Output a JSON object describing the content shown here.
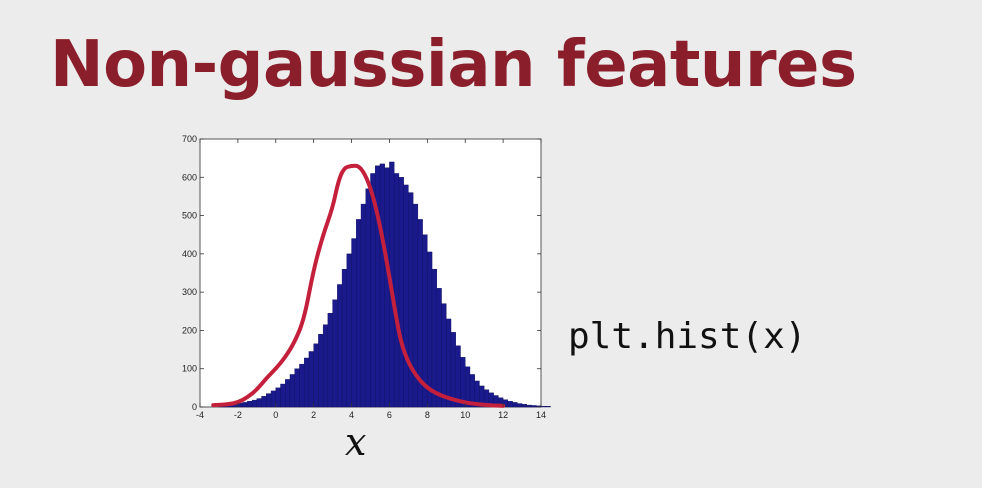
{
  "slide": {
    "title": "Non-gaussian features",
    "code": "plt.hist(x)",
    "axis_var": "x"
  },
  "colors": {
    "title": "#8b1e2b",
    "bars": "#1a1a8c",
    "curve": "#c4203c"
  },
  "chart_data": {
    "type": "bar",
    "title": "",
    "xlabel": "x",
    "ylabel": "",
    "xlim": [
      -4,
      14
    ],
    "ylim": [
      0,
      700
    ],
    "xticks": [
      -4,
      -2,
      0,
      2,
      4,
      6,
      8,
      10,
      12,
      14
    ],
    "yticks": [
      0,
      100,
      200,
      300,
      400,
      500,
      600,
      700
    ],
    "grid": false,
    "bin_width": 0.25,
    "bin_start": -3.0,
    "values": [
      3,
      4,
      6,
      8,
      10,
      12,
      15,
      18,
      22,
      28,
      35,
      42,
      50,
      60,
      72,
      85,
      100,
      112,
      128,
      145,
      165,
      190,
      215,
      245,
      280,
      320,
      360,
      400,
      440,
      490,
      530,
      570,
      610,
      630,
      635,
      625,
      640,
      610,
      600,
      580,
      560,
      530,
      490,
      450,
      405,
      360,
      310,
      270,
      230,
      195,
      160,
      130,
      105,
      85,
      68,
      55,
      45,
      37,
      30,
      24,
      19,
      15,
      12,
      9,
      7,
      5,
      4,
      3,
      2,
      2
    ],
    "curve": {
      "x": [
        -3.3,
        -2.5,
        -2.0,
        -1.5,
        -1.0,
        -0.5,
        0.0,
        0.5,
        1.0,
        1.5,
        2.0,
        2.5,
        3.0,
        3.3,
        3.6,
        4.0,
        4.4,
        4.8,
        5.2,
        5.6,
        6.0,
        6.3,
        6.6,
        7.0,
        7.5,
        8.0,
        8.5,
        9.0,
        9.5,
        10.0,
        10.5,
        11.0,
        11.5,
        12.0
      ],
      "y": [
        5,
        7,
        12,
        25,
        45,
        75,
        100,
        130,
        170,
        230,
        360,
        450,
        520,
        590,
        625,
        630,
        630,
        600,
        540,
        450,
        340,
        250,
        170,
        115,
        75,
        50,
        35,
        25,
        18,
        12,
        8,
        6,
        4,
        3
      ]
    }
  }
}
